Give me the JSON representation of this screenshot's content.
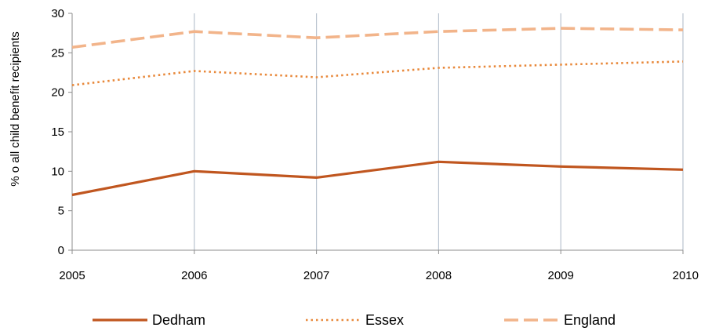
{
  "chart_data": {
    "type": "line",
    "title": "",
    "xlabel": "",
    "ylabel": "% o all child benefit recipients",
    "x": [
      "2005",
      "2006",
      "2007",
      "2008",
      "2009",
      "2010"
    ],
    "ylim": [
      0,
      30
    ],
    "yticks": [
      "0",
      "5",
      "10",
      "15",
      "20",
      "25",
      "30"
    ],
    "grid": "vertical lines at each year",
    "legend_position": "bottom",
    "series": [
      {
        "name": "Dedham",
        "values": [
          7.0,
          10.0,
          9.2,
          11.2,
          10.6,
          10.2
        ],
        "color": "#c0561f",
        "style": "solid"
      },
      {
        "name": "Essex",
        "values": [
          20.9,
          22.7,
          21.9,
          23.1,
          23.5,
          23.9
        ],
        "color": "#e8883a",
        "style": "dotted"
      },
      {
        "name": "England",
        "values": [
          25.7,
          27.7,
          26.9,
          27.7,
          28.1,
          27.9
        ],
        "color": "#f2b48a",
        "style": "dashed"
      }
    ]
  }
}
